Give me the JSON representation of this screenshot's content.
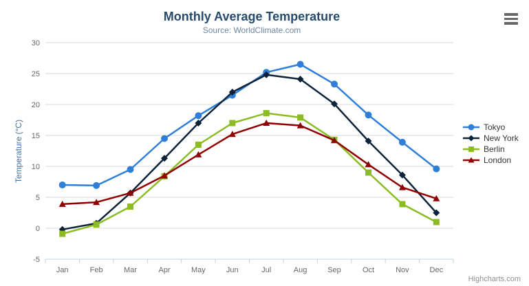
{
  "chart_data": {
    "type": "line",
    "title": "Monthly Average Temperature",
    "subtitle": "Source: WorldClimate.com",
    "categories": [
      "Jan",
      "Feb",
      "Mar",
      "Apr",
      "May",
      "Jun",
      "Jul",
      "Aug",
      "Sep",
      "Oct",
      "Nov",
      "Dec"
    ],
    "xlabel": "",
    "ylabel": "Temperature (°C)",
    "ylim": [
      -5,
      30
    ],
    "yticks": [
      -5,
      0,
      5,
      10,
      15,
      20,
      25,
      30
    ],
    "grid": true,
    "legend_position": "right",
    "series": [
      {
        "name": "Tokyo",
        "color": "#2f7ed8",
        "marker": "circle",
        "values": [
          7.0,
          6.9,
          9.5,
          14.5,
          18.2,
          21.5,
          25.2,
          26.5,
          23.3,
          18.3,
          13.9,
          9.6
        ]
      },
      {
        "name": "New York",
        "color": "#0d233a",
        "marker": "diamond",
        "values": [
          -0.2,
          0.8,
          5.7,
          11.3,
          17.0,
          22.0,
          24.8,
          24.1,
          20.1,
          14.1,
          8.6,
          2.5
        ]
      },
      {
        "name": "Berlin",
        "color": "#8bbc21",
        "marker": "square",
        "values": [
          -0.9,
          0.6,
          3.5,
          8.4,
          13.5,
          17.0,
          18.6,
          17.9,
          14.3,
          9.0,
          3.9,
          1.0
        ]
      },
      {
        "name": "London",
        "color": "#910000",
        "marker": "triangle",
        "values": [
          3.9,
          4.2,
          5.7,
          8.5,
          11.9,
          15.2,
          17.0,
          16.6,
          14.2,
          10.3,
          6.6,
          4.8
        ]
      }
    ]
  },
  "credits": {
    "label": "Highcharts.com"
  },
  "menu": {
    "icon": "hamburger-menu-icon"
  },
  "colors": {
    "title": "#274b6d",
    "subtitle": "#6d869f",
    "y_axis_title": "#4572a7",
    "axis_labels": "#666666",
    "grid": "#d8d8d8",
    "axis_line": "#c0d0e0",
    "legend_text": "#333333",
    "credits": "#909090",
    "menu_icon": "#666666",
    "background": "#ffffff"
  }
}
